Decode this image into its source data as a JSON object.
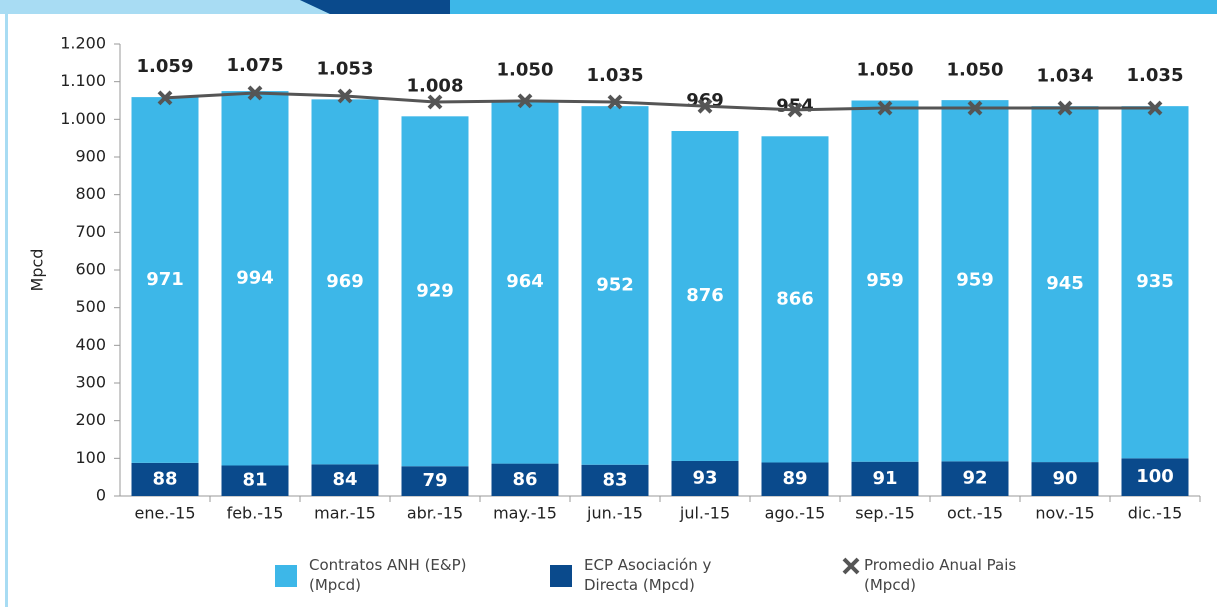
{
  "chart_data": {
    "type": "bar",
    "y_label": "Mpcd",
    "categories": [
      "ene.-15",
      "feb.-15",
      "mar.-15",
      "abr.-15",
      "may.-15",
      "jun.-15",
      "jul.-15",
      "ago.-15",
      "sep.-15",
      "oct.-15",
      "nov.-15",
      "dic.-15"
    ],
    "series": [
      {
        "name": "ECP Asociación y Directa (Mpcd)",
        "color": "#0a4a8c",
        "values": [
          88,
          81,
          84,
          79,
          86,
          83,
          93,
          89,
          91,
          92,
          90,
          100
        ]
      },
      {
        "name": "Contratos ANH (E&P) (Mpcd)",
        "color": "#3db7e8",
        "values": [
          971,
          994,
          969,
          929,
          964,
          952,
          876,
          866,
          959,
          959,
          945,
          935
        ]
      },
      {
        "name": "Promedio Anual Pais (Mpcd)",
        "type": "line",
        "color": "#555555",
        "values": [
          1057,
          1070,
          1062,
          1046,
          1049,
          1046,
          1035,
          1025,
          1030,
          1030,
          1030,
          1030
        ]
      }
    ],
    "totals": [
      1059,
      1075,
      1053,
      1008,
      1050,
      1035,
      969,
      954,
      1050,
      1050,
      1034,
      1035
    ],
    "total_labels": [
      "1.059",
      "1.075",
      "1.053",
      "1.008",
      "1.050",
      "1.035",
      "969",
      "954",
      "1.050",
      "1.050",
      "1.034",
      "1.035"
    ],
    "ylim": [
      0,
      1200
    ],
    "yticks": [
      0,
      100,
      200,
      300,
      400,
      500,
      600,
      700,
      800,
      900,
      {
        "value": 1000,
        "label": "1.000"
      },
      {
        "value": 1100,
        "label": "1.100"
      },
      {
        "value": 1200,
        "label": "1.200"
      }
    ]
  }
}
